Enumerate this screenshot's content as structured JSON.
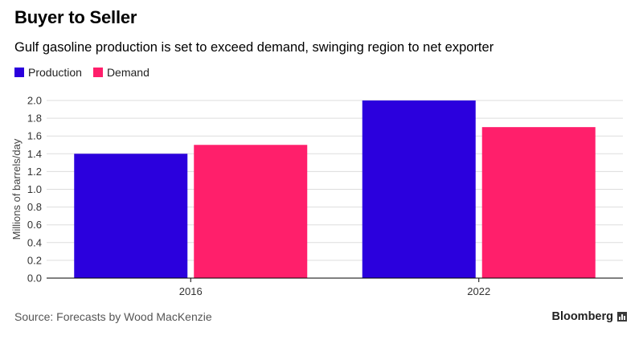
{
  "header": {
    "title": "Buyer to Seller",
    "subtitle": "Gulf gasoline production is set to exceed demand, swinging region to net exporter"
  },
  "footer": {
    "source": "Source: Forecasts by Wood MacKenzie",
    "brand": "Bloomberg",
    "brand_icon": "bar-chart-icon"
  },
  "colors": {
    "production": "#2b00dd",
    "demand": "#ff1f6b",
    "grid": "#dddddd",
    "axis": "#000000"
  },
  "chart_data": {
    "type": "bar",
    "title": "Buyer to Seller",
    "subtitle": "Gulf gasoline production is set to exceed demand, swinging region to net exporter",
    "categories": [
      "2016",
      "2022"
    ],
    "series": [
      {
        "name": "Production",
        "values": [
          1.4,
          2.0
        ]
      },
      {
        "name": "Demand",
        "values": [
          1.5,
          1.7
        ]
      }
    ],
    "xlabel": "",
    "ylabel": "Millions of barrels/day",
    "ylim": [
      0,
      2.0
    ],
    "yticks": [
      "0.0",
      "0.2",
      "0.4",
      "0.6",
      "0.8",
      "1.0",
      "1.2",
      "1.4",
      "1.6",
      "1.8",
      "2.0"
    ],
    "grid": true,
    "legend": "top-left"
  }
}
